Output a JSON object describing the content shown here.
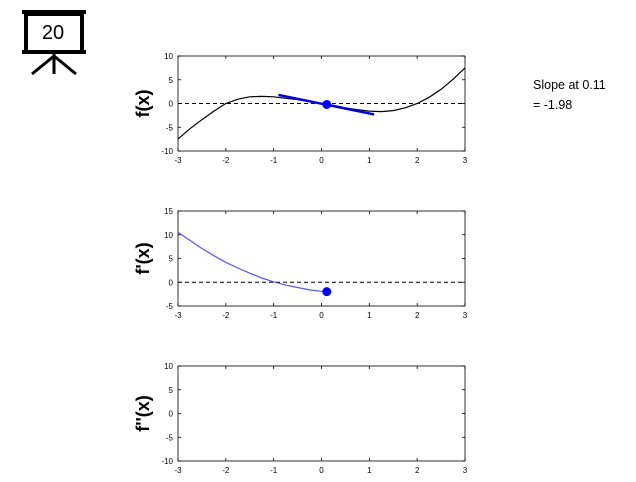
{
  "slide_number": "20",
  "annotation": {
    "line1": "Slope at 0.11",
    "line2": "= -1.98"
  },
  "colors": {
    "function_curve": "#000000",
    "derivative_curve": "#5555ee",
    "marker": "#0000ff",
    "tangent_line": "#0000dd",
    "zero_line": "#000000"
  },
  "chart_data": [
    {
      "type": "line",
      "name": "f-panel",
      "ylabel": "f(x)",
      "xlim": [
        -3,
        3
      ],
      "ylim": [
        -10,
        10
      ],
      "xticks": [
        -3,
        -2,
        -1,
        0,
        1,
        2,
        3
      ],
      "yticks": [
        -10,
        -5,
        0,
        5,
        10
      ],
      "zero_line": "dashed",
      "curve": {
        "x": [
          -3,
          -2.75,
          -2.5,
          -2.25,
          -2,
          -1.75,
          -1.5,
          -1.25,
          -1,
          -0.75,
          -0.5,
          -0.25,
          0,
          0.25,
          0.5,
          0.75,
          1,
          1.25,
          1.5,
          1.75,
          2,
          2.25,
          2.5,
          2.75,
          3
        ],
        "y": [
          -7.5,
          -5.3,
          -3.4,
          -1.6,
          0.0,
          0.9,
          1.4,
          1.5,
          1.4,
          1.1,
          0.8,
          0.4,
          0.0,
          -0.4,
          -0.9,
          -1.3,
          -1.6,
          -1.7,
          -1.5,
          -0.9,
          0.0,
          1.3,
          3.0,
          5.1,
          7.5
        ]
      },
      "point": {
        "x": 0.11,
        "y": -0.2
      },
      "tangent": {
        "x": [
          -0.9,
          1.1
        ],
        "y": [
          1.8,
          -2.3
        ]
      }
    },
    {
      "type": "line",
      "name": "fprime-panel",
      "ylabel": "f'(x)",
      "xlim": [
        -3,
        3
      ],
      "ylim": [
        -5,
        15
      ],
      "xticks": [
        -3,
        -2,
        -1,
        0,
        1,
        2,
        3
      ],
      "yticks": [
        -5,
        0,
        5,
        10,
        15
      ],
      "zero_line": "dashed",
      "curve": {
        "x": [
          -3,
          -2.75,
          -2.5,
          -2.25,
          -2,
          -1.75,
          -1.5,
          -1.25,
          -1,
          -0.75,
          -0.5,
          -0.25,
          0,
          0.11
        ],
        "y": [
          10.5,
          8.8,
          7.1,
          5.6,
          4.2,
          3.0,
          1.9,
          0.9,
          0.1,
          -0.6,
          -1.1,
          -1.6,
          -1.9,
          -1.98
        ]
      },
      "point": {
        "x": 0.11,
        "y": -1.98
      }
    },
    {
      "type": "line",
      "name": "fdoubleprime-panel",
      "ylabel": "f''(x)",
      "xlim": [
        -3,
        3
      ],
      "ylim": [
        -10,
        10
      ],
      "xticks": [
        -3,
        -2,
        -1,
        0,
        1,
        2,
        3
      ],
      "yticks": [
        -10,
        -5,
        0,
        5,
        10
      ]
    }
  ]
}
